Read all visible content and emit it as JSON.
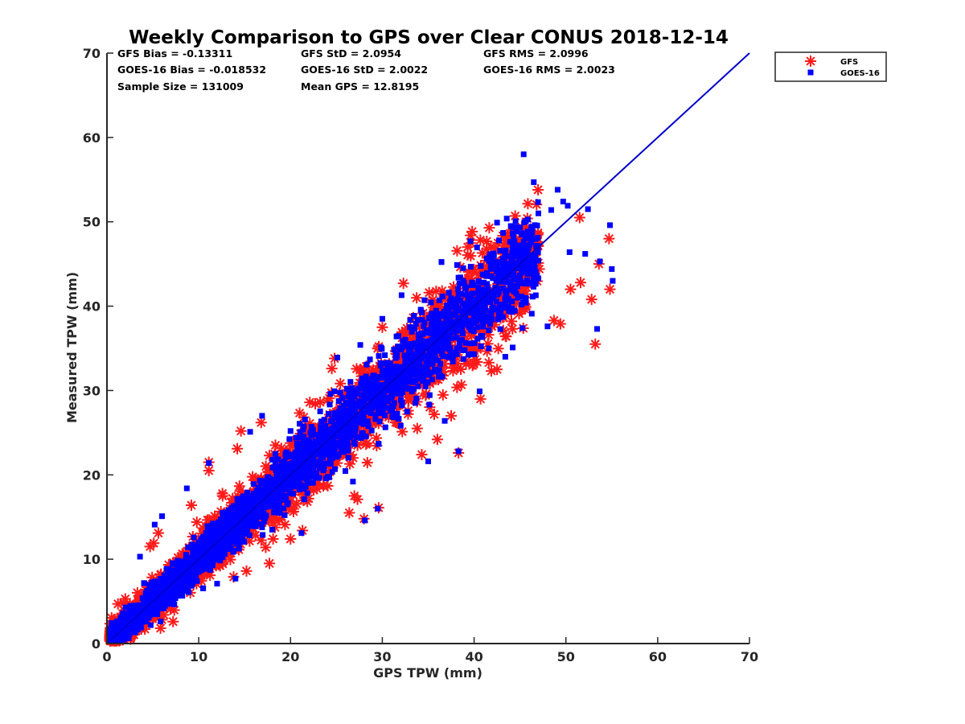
{
  "chart_data": {
    "type": "scatter",
    "title": "Weekly Comparison to GPS over Clear CONUS 2018-12-14",
    "xlabel": "GPS TPW (mm)",
    "ylabel": "Measured TPW (mm)",
    "xlim": [
      0,
      70
    ],
    "ylim": [
      0,
      70
    ],
    "xticks": [
      "0",
      "10",
      "20",
      "30",
      "40",
      "50",
      "60",
      "70"
    ],
    "yticks": [
      "0",
      "10",
      "20",
      "30",
      "40",
      "50",
      "60",
      "70"
    ],
    "grid": false,
    "legend": "top-right outside",
    "reference_line": {
      "from": [
        0,
        0
      ],
      "to": [
        70,
        70
      ],
      "color": "#0000cc"
    },
    "stats": [
      [
        "GFS Bias = -0.13311",
        "GFS StD = 2.0954",
        "GFS RMS = 2.0996"
      ],
      [
        "GOES-16 Bias = -0.018532",
        "GOES-16 StD = 2.0022",
        "GOES-16 RMS = 2.0023"
      ],
      [
        "Sample Size = 131009",
        "Mean GPS = 12.8195",
        ""
      ]
    ],
    "series": [
      {
        "name": "GFS",
        "marker": "asterisk",
        "color": "#ff1a1a",
        "band_spread": 4.5,
        "points": [
          [
            53.2,
            35.5
          ],
          [
            52.8,
            40.8
          ],
          [
            54.8,
            42.0
          ],
          [
            50.5,
            42.0
          ],
          [
            51.6,
            42.8
          ],
          [
            53.6,
            45.0
          ],
          [
            54.7,
            48.0
          ],
          [
            48.7,
            38.3
          ],
          [
            49.4,
            37.9
          ],
          [
            42.5,
            32.5
          ],
          [
            32.3,
            42.7
          ],
          [
            35.1,
            41.6
          ],
          [
            39.3,
            47.0
          ],
          [
            45.8,
            50.4
          ],
          [
            51.5,
            50.5
          ],
          [
            38.3,
            22.6
          ],
          [
            34.3,
            22.4
          ],
          [
            33.8,
            25.5
          ],
          [
            31.5,
            28.1
          ],
          [
            29.6,
            16.1
          ],
          [
            28.0,
            14.8
          ],
          [
            26.4,
            15.5
          ],
          [
            21.3,
            13.4
          ],
          [
            19.4,
            14.1
          ],
          [
            14.6,
            25.2
          ],
          [
            16.8,
            26.2
          ],
          [
            14.2,
            23.1
          ],
          [
            11.1,
            21.5
          ],
          [
            11.1,
            20.5
          ],
          [
            9.2,
            16.4
          ],
          [
            5.6,
            13.1
          ],
          [
            4.7,
            11.5
          ],
          [
            5.1,
            11.9
          ],
          [
            17.7,
            9.5
          ],
          [
            17.3,
            11.4
          ],
          [
            18.1,
            12.4
          ],
          [
            15.2,
            8.6
          ],
          [
            7.2,
            2.6
          ],
          [
            6.2,
            3.4
          ],
          [
            13.8,
            7.9
          ],
          [
            20.0,
            12.4
          ],
          [
            24.8,
            33.8
          ],
          [
            24.5,
            32.6
          ],
          [
            30.0,
            37.5
          ],
          [
            1.2,
            4.7
          ],
          [
            2.0,
            5.3
          ],
          [
            22.1,
            28.6
          ],
          [
            27.3,
            17.1
          ],
          [
            36.0,
            24.2
          ],
          [
            37.5,
            27.0
          ],
          [
            40.7,
            29.0
          ],
          [
            41.6,
            33.3
          ],
          [
            43.5,
            36.4
          ],
          [
            44.9,
            39.1
          ],
          [
            47.1,
            44.4
          ],
          [
            45.6,
            48.3
          ],
          [
            42.6,
            47.5
          ],
          [
            40.9,
            46.3
          ],
          [
            27.3,
            23.5
          ],
          [
            12.6,
            17.5
          ],
          [
            3.2,
            2.4
          ],
          [
            7.6,
            8.1
          ]
        ]
      },
      {
        "name": "GOES-16",
        "marker": "square",
        "color": "#0000ff",
        "band_spread": 3.6,
        "points": [
          [
            45.4,
            58.0
          ],
          [
            46.5,
            54.7
          ],
          [
            49.1,
            53.8
          ],
          [
            48.4,
            51.4
          ],
          [
            49.7,
            52.4
          ],
          [
            50.2,
            51.9
          ],
          [
            52.4,
            51.5
          ],
          [
            53.4,
            37.3
          ],
          [
            55.1,
            43.0
          ],
          [
            55.0,
            44.4
          ],
          [
            54.8,
            49.6
          ],
          [
            48.0,
            37.6
          ],
          [
            44.2,
            35.1
          ],
          [
            43.4,
            34.0
          ],
          [
            41.6,
            35.0
          ],
          [
            36.8,
            26.4
          ],
          [
            32.7,
            27.5
          ],
          [
            29.5,
            16.0
          ],
          [
            28.1,
            14.6
          ],
          [
            21.2,
            13.1
          ],
          [
            16.9,
            27.0
          ],
          [
            15.6,
            25.1
          ],
          [
            11.1,
            21.4
          ],
          [
            5.2,
            14.1
          ],
          [
            6.0,
            15.1
          ],
          [
            8.7,
            18.4
          ],
          [
            3.6,
            10.3
          ],
          [
            5.5,
            3.7
          ],
          [
            18.0,
            13.5
          ],
          [
            12.0,
            7.1
          ],
          [
            30.0,
            38.5
          ],
          [
            32.1,
            41.3
          ],
          [
            25.1,
            33.9
          ],
          [
            39.6,
            47.7
          ],
          [
            42.5,
            49.9
          ],
          [
            44.2,
            49.3
          ],
          [
            38.3,
            22.8
          ],
          [
            40.6,
            29.9
          ],
          [
            35.0,
            21.6
          ],
          [
            26.8,
            19.2
          ],
          [
            20.0,
            25.2
          ],
          [
            14.0,
            7.7
          ],
          [
            47.0,
            51.0
          ],
          [
            50.4,
            46.4
          ],
          [
            52.1,
            46.2
          ],
          [
            53.7,
            45.3
          ],
          [
            46.6,
            44.2
          ],
          [
            27.6,
            35.4
          ]
        ]
      }
    ]
  }
}
